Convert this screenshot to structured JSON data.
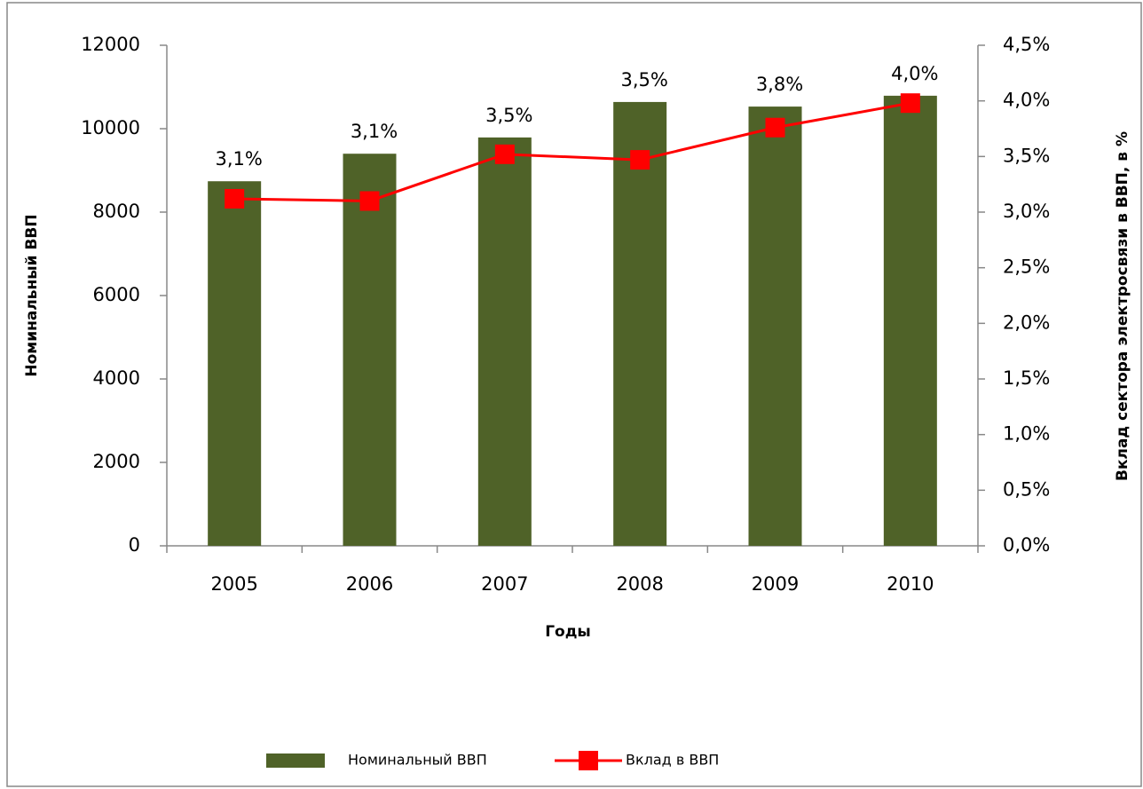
{
  "chart_data": {
    "type": "bar-line",
    "categories": [
      "2005",
      "2006",
      "2007",
      "2008",
      "2009",
      "2010"
    ],
    "series": [
      {
        "name": "Номинальный ВВП",
        "type": "bar",
        "color": "#4f6228",
        "values": [
          8740,
          9400,
          9790,
          10640,
          10530,
          10790
        ]
      },
      {
        "name": "Вклад в ВВП",
        "type": "line",
        "axis": "y2",
        "color": "#ff0000",
        "values": [
          3.12,
          3.1,
          3.52,
          3.47,
          3.76,
          3.98
        ],
        "value_labels": [
          "3,1%",
          "3,1%",
          "3,5%",
          "3,5%",
          "3,8%",
          "4,0%"
        ]
      }
    ],
    "xlabel": "Годы",
    "ylabel": "Номинальный ВВП",
    "y2label": "Вклад сектора электросвязи в ВВП, в %",
    "ylim": [
      0,
      12000
    ],
    "yticks": [
      0,
      2000,
      4000,
      6000,
      8000,
      10000,
      12000
    ],
    "y2lim": [
      0,
      4.5
    ],
    "y2ticks": [
      {
        "value": 0,
        "label": "0,0%"
      },
      {
        "value": 0.5,
        "label": "0,5%"
      },
      {
        "value": 1,
        "label": "1,0%"
      },
      {
        "value": 1.5,
        "label": "1,5%"
      },
      {
        "value": 2,
        "label": "2,0%"
      },
      {
        "value": 2.5,
        "label": "2,5%"
      },
      {
        "value": 3,
        "label": "3,0%"
      },
      {
        "value": 3.5,
        "label": "3,5%"
      },
      {
        "value": 4,
        "label": "4,0%"
      },
      {
        "value": 4.5,
        "label": "4,5%"
      }
    ],
    "legend": "bottom",
    "grid": false
  }
}
